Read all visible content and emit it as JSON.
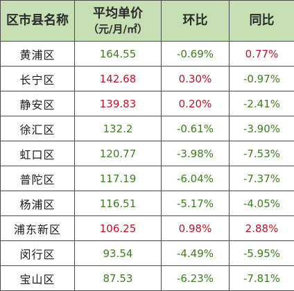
{
  "header": {
    "district": "区市县名称",
    "price": "平均单价",
    "price_unit": "（元/月/㎡）",
    "mom": "环比",
    "yoy": "同比"
  },
  "rows": [
    {
      "district": "黄浦区",
      "price": "164.55",
      "mom": "-0.69%",
      "yoy": "0.77%"
    },
    {
      "district": "长宁区",
      "price": "142.68",
      "mom": "0.30%",
      "yoy": "-0.97%"
    },
    {
      "district": "静安区",
      "price": "139.83",
      "mom": "0.20%",
      "yoy": "-2.41%"
    },
    {
      "district": "徐汇区",
      "price": "132.2",
      "mom": "-0.61%",
      "yoy": "-3.90%"
    },
    {
      "district": "虹口区",
      "price": "120.77",
      "mom": "-3.98%",
      "yoy": "-7.53%"
    },
    {
      "district": "普陀区",
      "price": "117.19",
      "mom": "-6.04%",
      "yoy": "-7.37%"
    },
    {
      "district": "杨浦区",
      "price": "116.51",
      "mom": "-5.17%",
      "yoy": "-4.05%"
    },
    {
      "district": "浦东新区",
      "price": "106.25",
      "mom": "0.98%",
      "yoy": "2.88%"
    },
    {
      "district": "闵行区",
      "price": "93.54",
      "mom": "-4.49%",
      "yoy": "-5.95%"
    },
    {
      "district": "宝山区",
      "price": "87.53",
      "mom": "-6.23%",
      "yoy": "-7.81%"
    }
  ],
  "colors": {
    "header_bg": "#c6e0b4",
    "increase": "#c0102a",
    "decrease": "#3c7d1e",
    "border": "#4a4a4a"
  }
}
